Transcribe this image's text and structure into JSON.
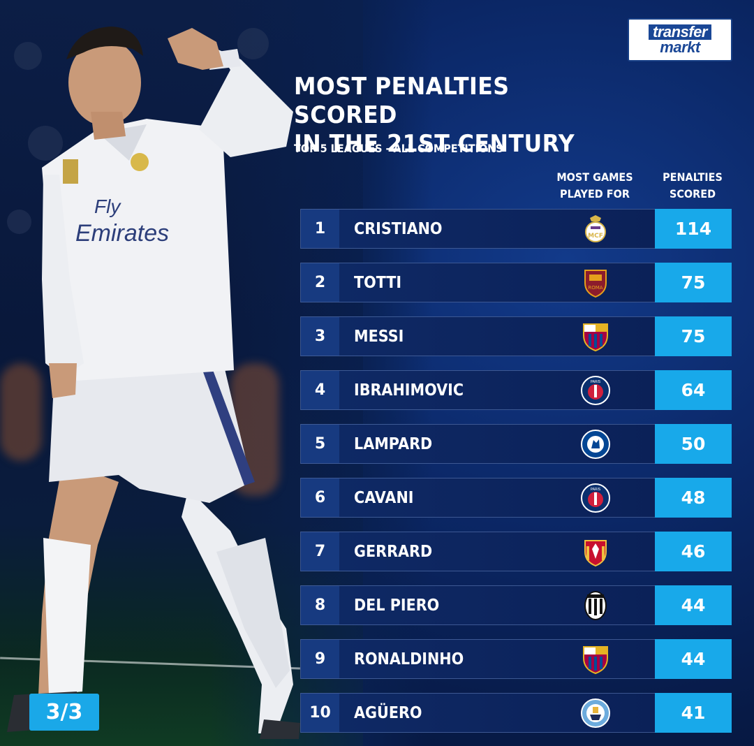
{
  "brand": {
    "line1": "transfer",
    "line2": "markt"
  },
  "title": {
    "line1": "MOST PENALTIES SCORED",
    "line2": "IN THE 21ST CENTURY"
  },
  "subtitle": "TOP 5 LEAGUES - ALL COMPETITIONS",
  "columns": {
    "club": {
      "line1": "MOST GAMES",
      "line2": "PLAYED FOR"
    },
    "penalties": {
      "line1": "PENALTIES",
      "line2": "SCORED"
    }
  },
  "rows": [
    {
      "rank": "1",
      "name": "CRISTIANO",
      "club_icon": "real-madrid-crest",
      "penalties": "114"
    },
    {
      "rank": "2",
      "name": "TOTTI",
      "club_icon": "roma-crest",
      "penalties": "75"
    },
    {
      "rank": "3",
      "name": "MESSI",
      "club_icon": "barcelona-crest",
      "penalties": "75"
    },
    {
      "rank": "4",
      "name": "IBRAHIMOVIC",
      "club_icon": "psg-crest",
      "penalties": "64"
    },
    {
      "rank": "5",
      "name": "LAMPARD",
      "club_icon": "chelsea-crest",
      "penalties": "50"
    },
    {
      "rank": "6",
      "name": "CAVANI",
      "club_icon": "psg-crest",
      "penalties": "48"
    },
    {
      "rank": "7",
      "name": "GERRARD",
      "club_icon": "liverpool-crest",
      "penalties": "46"
    },
    {
      "rank": "8",
      "name": "DEL PIERO",
      "club_icon": "juventus-crest",
      "penalties": "44"
    },
    {
      "rank": "9",
      "name": "RONALDINHO",
      "club_icon": "barcelona-crest",
      "penalties": "44"
    },
    {
      "rank": "10",
      "name": "AGÜERO",
      "club_icon": "man-city-crest",
      "penalties": "41"
    }
  ],
  "page_indicator": "3/3",
  "colors": {
    "accent": "#18a9ea",
    "row_bg": "#0f2a66",
    "rank_bg": "#173a80",
    "brand_blue": "#1a4796"
  }
}
